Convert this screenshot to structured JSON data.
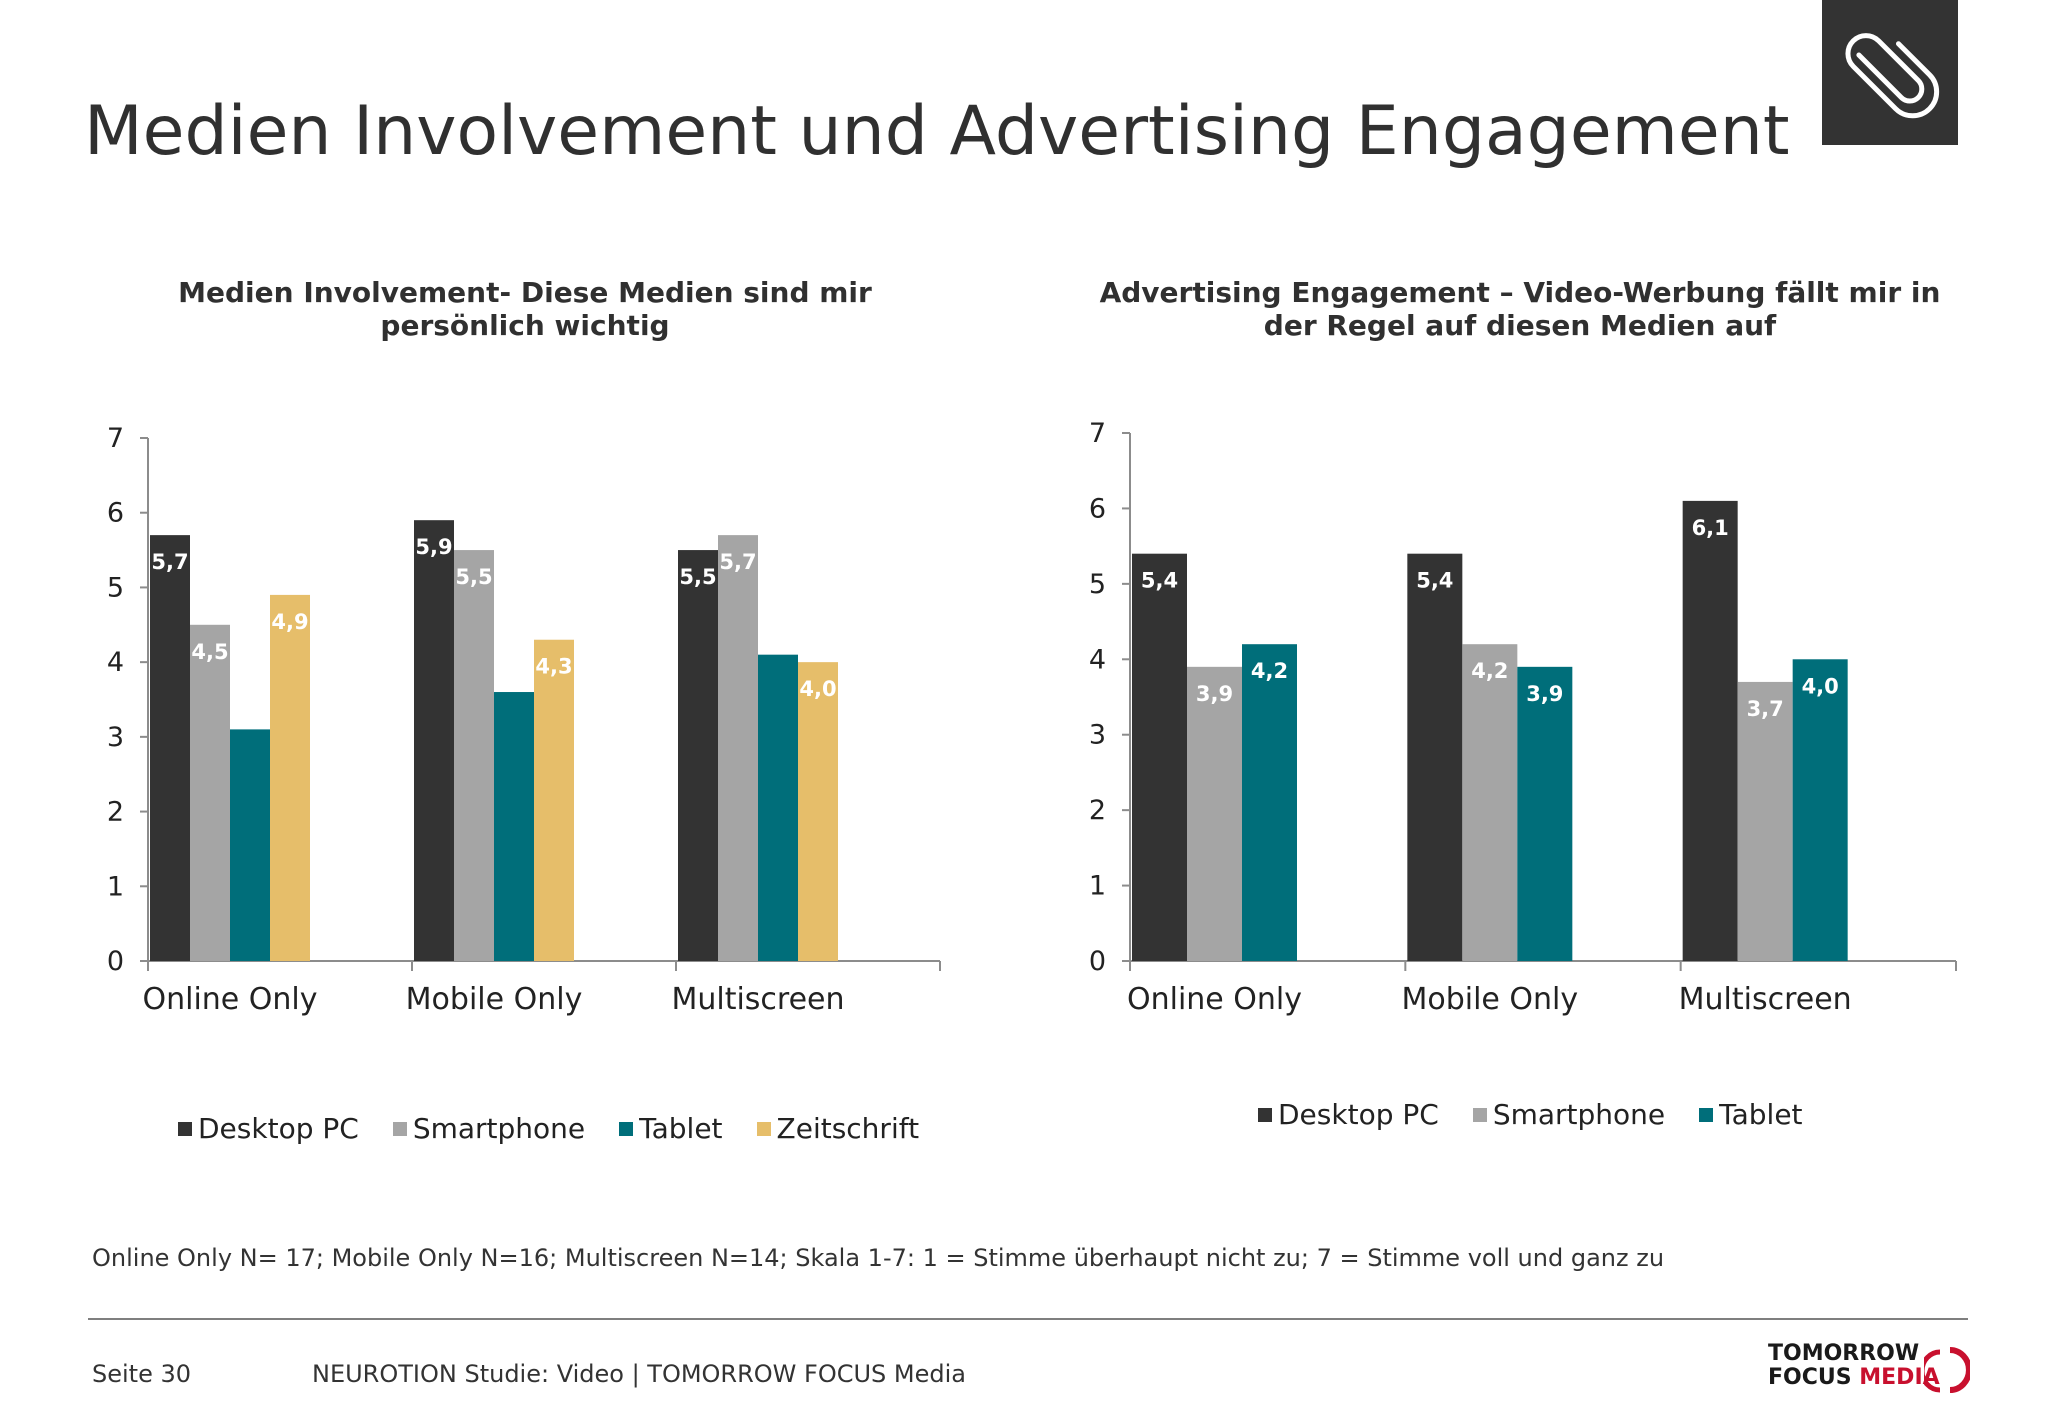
{
  "title": "Medien Involvement und Advertising Engagement",
  "colors": {
    "Desktop PC": "#333333",
    "Smartphone": "#a5a5a5",
    "Tablet": "#006e7a",
    "Zeitschrift": "#e6be6a"
  },
  "chart_data": [
    {
      "type": "bar",
      "title": "Medien Involvement- Diese Medien sind mir persönlich wichtig",
      "categories": [
        "Online Only",
        "Mobile Only",
        "Multiscreen"
      ],
      "ylim": [
        0,
        7
      ],
      "yticks": [
        "0",
        "1",
        "2",
        "3",
        "4",
        "5",
        "6",
        "7"
      ],
      "legend_position": "bottom",
      "series": [
        {
          "name": "Desktop PC",
          "values": [
            5.7,
            5.9,
            5.5
          ],
          "labels": [
            "5,7",
            "5,9",
            "5,5"
          ]
        },
        {
          "name": "Smartphone",
          "values": [
            4.5,
            5.5,
            5.7
          ],
          "labels": [
            "4,5",
            "5,5",
            "5,7"
          ]
        },
        {
          "name": "Tablet",
          "values": [
            3.1,
            3.6,
            4.1
          ],
          "labels": [
            "",
            "",
            ""
          ]
        },
        {
          "name": "Zeitschrift",
          "values": [
            4.9,
            4.3,
            4.0
          ],
          "labels": [
            "4,9",
            "4,3",
            "4,0"
          ]
        }
      ]
    },
    {
      "type": "bar",
      "title": "Advertising Engagement – Video-Werbung fällt mir in der Regel auf diesen Medien auf",
      "categories": [
        "Online Only",
        "Mobile Only",
        "Multiscreen"
      ],
      "ylim": [
        0,
        7
      ],
      "yticks": [
        "0",
        "1",
        "2",
        "3",
        "4",
        "5",
        "6",
        "7"
      ],
      "legend_position": "bottom",
      "series": [
        {
          "name": "Desktop PC",
          "values": [
            5.4,
            5.4,
            6.1
          ],
          "labels": [
            "5,4",
            "5,4",
            "6,1"
          ]
        },
        {
          "name": "Smartphone",
          "values": [
            3.9,
            4.2,
            3.7
          ],
          "labels": [
            "3,9",
            "4,2",
            "3,7"
          ]
        },
        {
          "name": "Tablet",
          "values": [
            4.2,
            3.9,
            4.0
          ],
          "labels": [
            "4,2",
            "3,9",
            "4,0"
          ]
        }
      ]
    }
  ],
  "footnote": "Online Only N= 17; Mobile Only N=16; Multiscreen N=14; Skala 1-7: 1 = Stimme überhaupt nicht zu; 7 = Stimme voll und ganz zu",
  "footer": {
    "page": "Seite 30",
    "study": "NEUROTION Studie: Video | TOMORROW FOCUS Media"
  },
  "logo": {
    "line1": "TOMORROW",
    "line2a": "FOCUS",
    "line2b": "MEDIA"
  },
  "icons": {
    "header": "paperclip-icon",
    "logo": "ring-logo-icon"
  }
}
